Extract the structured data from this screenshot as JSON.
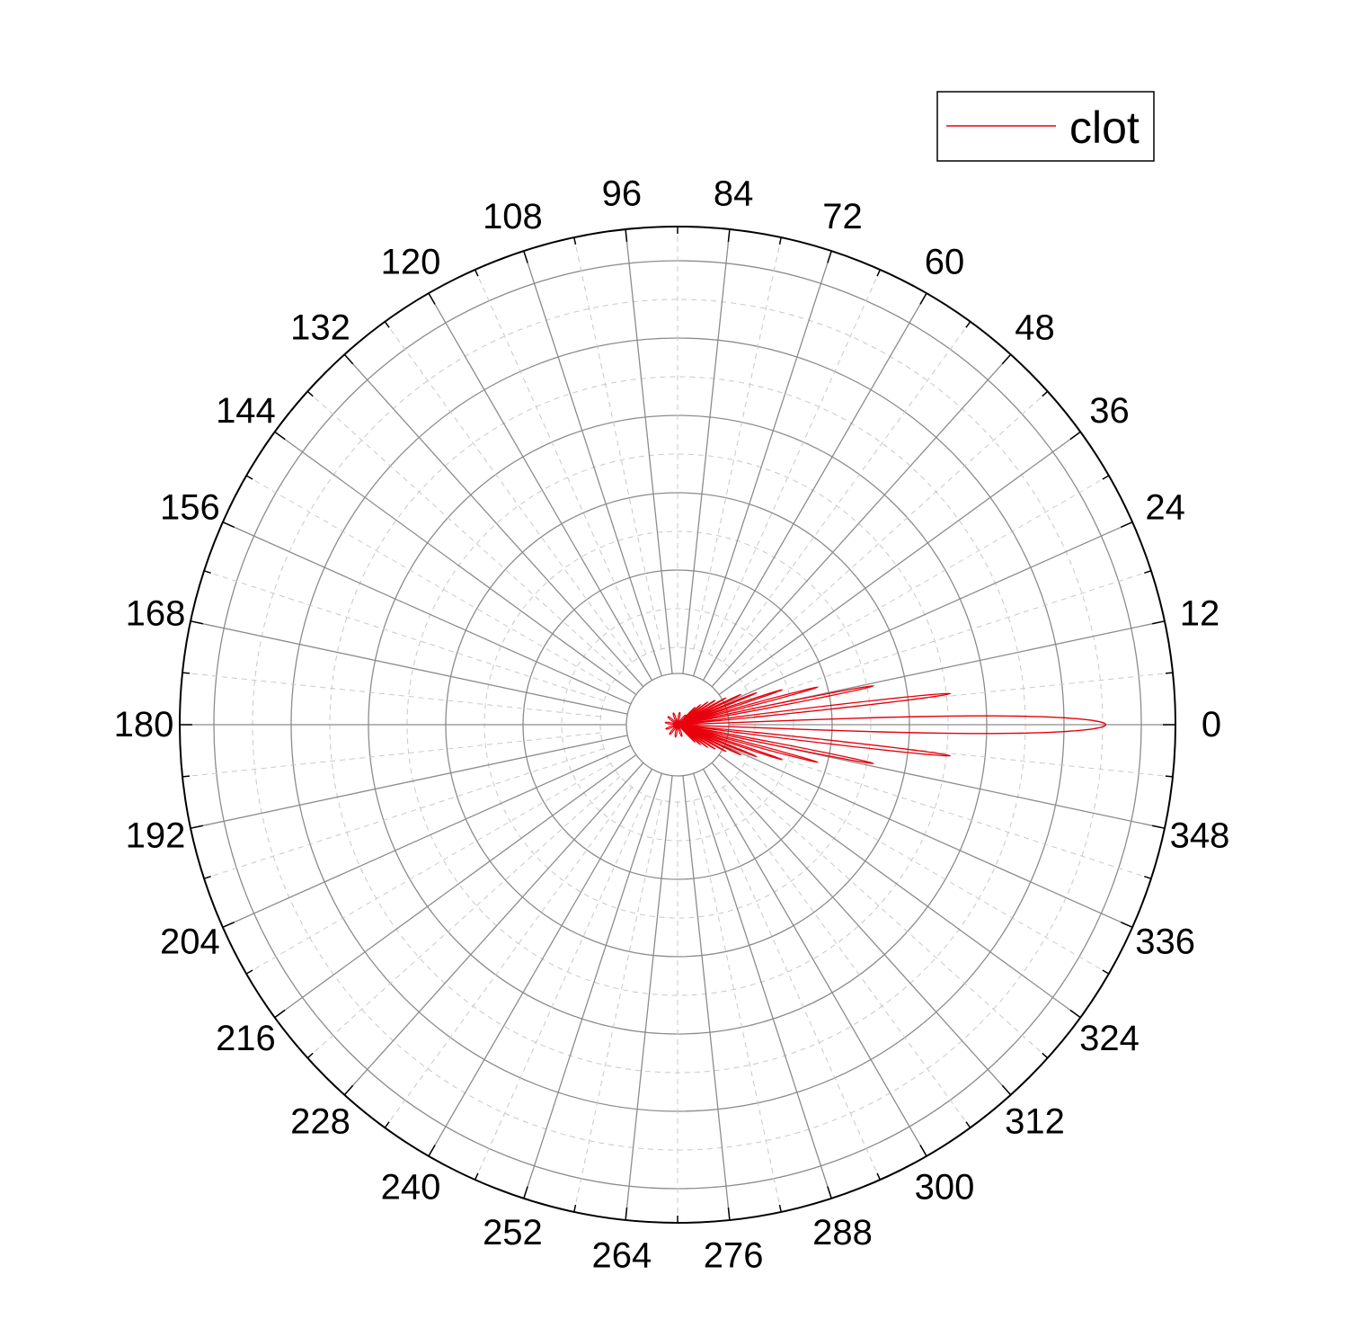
{
  "chart_data": {
    "type": "polar-line",
    "theta_unit": "degrees",
    "theta_direction": "counterclockwise",
    "theta_zero": "right",
    "angle_ticks": [
      0,
      12,
      24,
      36,
      48,
      60,
      72,
      84,
      96,
      108,
      120,
      132,
      144,
      156,
      168,
      180,
      192,
      204,
      216,
      228,
      240,
      252,
      264,
      276,
      288,
      300,
      312,
      324,
      336,
      348
    ],
    "angle_tick_labels": [
      "0",
      "12",
      "24",
      "36",
      "48",
      "60",
      "72",
      "84",
      "96",
      "108",
      "120",
      "132",
      "144",
      "156",
      "168",
      "180",
      "192",
      "204",
      "216",
      "228",
      "240",
      "252",
      "264",
      "276",
      "288",
      "300",
      "312",
      "324",
      "336",
      "348"
    ],
    "radial_tick_labels": [],
    "grid": true,
    "legend": {
      "position": "top-right",
      "entries": [
        "clot"
      ]
    },
    "series": [
      {
        "name": "clot",
        "color": "#e8000b",
        "main_lobe": {
          "angle": 0,
          "radius": 0.86,
          "half_width_deg": 2.2
        },
        "side_lobes": [
          {
            "angle": 6.5,
            "radius": 0.55
          },
          {
            "angle": 11.2,
            "radius": 0.4
          },
          {
            "angle": 15.0,
            "radius": 0.29
          },
          {
            "angle": 18.5,
            "radius": 0.22
          },
          {
            "angle": 22.0,
            "radius": 0.17
          },
          {
            "angle": 25.5,
            "radius": 0.14
          },
          {
            "angle": 29.0,
            "radius": 0.11
          },
          {
            "angle": 33.0,
            "radius": 0.09
          },
          {
            "angle": 37.0,
            "radius": 0.075
          },
          {
            "angle": 41.0,
            "radius": 0.06
          },
          {
            "angle": 45.0,
            "radius": 0.05
          },
          {
            "angle": -6.5,
            "radius": 0.55
          },
          {
            "angle": -11.2,
            "radius": 0.4
          },
          {
            "angle": -15.0,
            "radius": 0.29
          },
          {
            "angle": -18.5,
            "radius": 0.22
          },
          {
            "angle": -22.0,
            "radius": 0.17
          },
          {
            "angle": -25.5,
            "radius": 0.14
          },
          {
            "angle": -29.0,
            "radius": 0.11
          },
          {
            "angle": -33.0,
            "radius": 0.09
          },
          {
            "angle": -37.0,
            "radius": 0.075
          },
          {
            "angle": -41.0,
            "radius": 0.06
          },
          {
            "angle": -45.0,
            "radius": 0.05
          }
        ]
      }
    ]
  }
}
